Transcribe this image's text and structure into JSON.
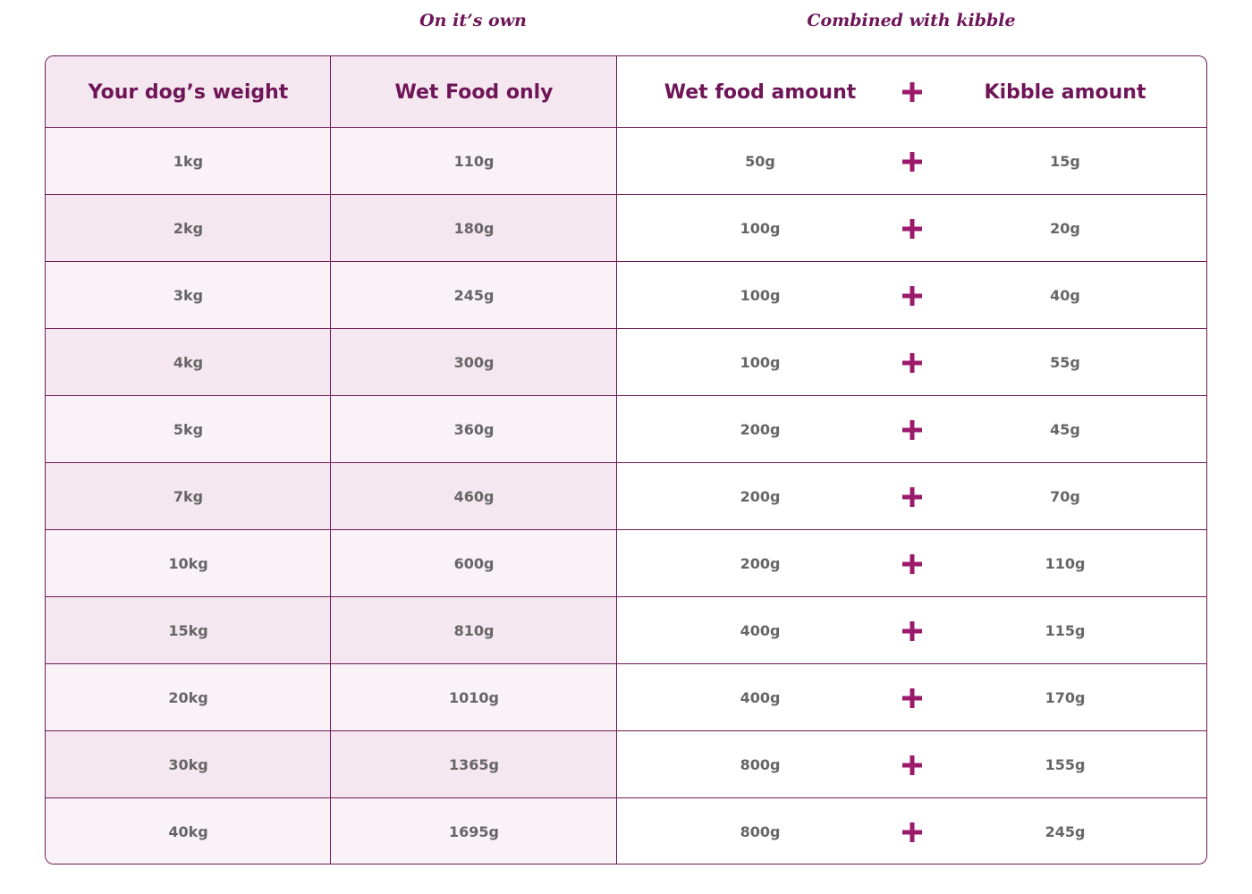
{
  "groups": [
    "On it’s own",
    "Combined with kibble"
  ],
  "table": {
    "header": [
      "Your dog’s weight",
      "Wet Food only",
      "Wet food amount",
      "Kibble amount"
    ],
    "rows": [
      [
        "1kg",
        "110g",
        "50g",
        "15g"
      ],
      [
        "2kg",
        "180g",
        "100g",
        "20g"
      ],
      [
        "3kg",
        "245g",
        "100g",
        "40g"
      ],
      [
        "4kg",
        "300g",
        "100g",
        "55g"
      ],
      [
        "5kg",
        "360g",
        "200g",
        "45g"
      ],
      [
        "7kg",
        "460g",
        "200g",
        "70g"
      ],
      [
        "10kg",
        "600g",
        "200g",
        "110g"
      ],
      [
        "15kg",
        "810g",
        "400g",
        "115g"
      ],
      [
        "20kg",
        "1010g",
        "400g",
        "170g"
      ],
      [
        "30kg",
        "1365g",
        "800g",
        "155g"
      ],
      [
        "40kg",
        "1695g",
        "800g",
        "245g"
      ]
    ]
  }
}
